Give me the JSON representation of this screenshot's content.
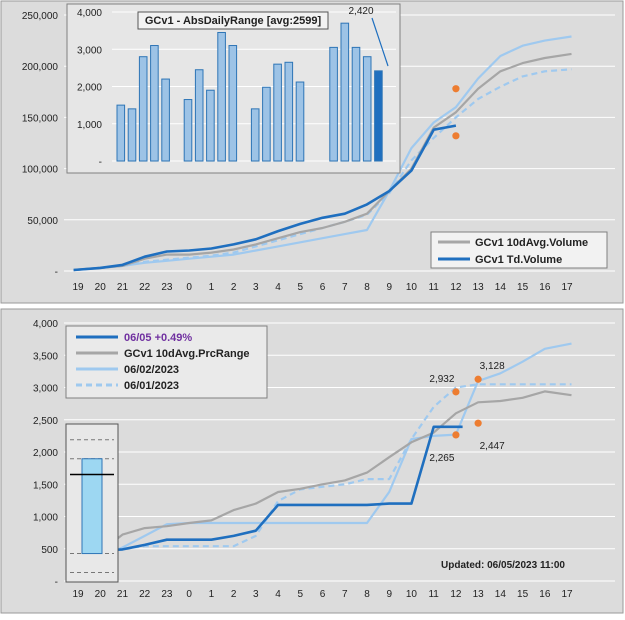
{
  "colors": {
    "panel_bg": "#dcdcdc",
    "inset_bg": "#e6e6e6",
    "dark_blue": "#1f6fbf",
    "light_blue": "#9dc3e6",
    "light_blue_line": "#9fc9ef",
    "gray_line": "#a6a6a6",
    "orange": "#ed7d31",
    "purple": "#7030a0",
    "bar_fill": "#9dc3e6",
    "bar_stroke": "#2e75b6"
  },
  "chart_data": [
    {
      "type": "line",
      "x_ticks": [
        "19",
        "20",
        "21",
        "22",
        "23",
        "0",
        "1",
        "2",
        "3",
        "4",
        "5",
        "6",
        "7",
        "8",
        "9",
        "10",
        "11",
        "12",
        "13",
        "14",
        "15",
        "16",
        "17"
      ],
      "y_ticks": [
        "-",
        "50,000",
        "100,000",
        "150,000",
        "200,000",
        "250,000"
      ],
      "ylim": [
        0,
        250000
      ],
      "grid": true,
      "legend_position": "bottom-right",
      "series": [
        {
          "name": "GCv1 10dAvg.Volume",
          "color": "#a6a6a6",
          "style": "solid",
          "x": [
            18.8,
            20,
            21,
            22,
            23,
            24,
            25,
            26,
            27,
            28,
            29,
            30,
            31,
            32,
            33,
            34,
            35,
            36,
            37,
            38,
            39,
            40,
            41.2
          ],
          "y": [
            1000,
            3000,
            5000,
            12000,
            16000,
            16000,
            18000,
            21000,
            26000,
            32000,
            38000,
            42000,
            48000,
            56000,
            78000,
            100000,
            140000,
            155000,
            178000,
            195000,
            203000,
            208000,
            212000
          ]
        },
        {
          "name": "GCv1 Td.Volume",
          "color": "#1f6fbf",
          "style": "solid",
          "x": [
            18.8,
            20,
            21,
            22,
            23,
            24,
            25,
            26,
            27,
            28,
            29,
            30,
            31,
            32,
            33,
            34,
            35,
            36
          ],
          "y": [
            1000,
            3000,
            6000,
            14000,
            19000,
            20000,
            22000,
            26000,
            31000,
            39000,
            46000,
            52000,
            56000,
            65000,
            78000,
            98000,
            138000,
            142000
          ]
        },
        {
          "name": "",
          "color": "#9fc9ef",
          "style": "solid",
          "x": [
            18.8,
            20,
            21,
            22,
            23,
            24,
            25,
            26,
            27,
            28,
            29,
            30,
            31,
            32,
            33,
            34,
            35,
            36,
            37,
            38,
            39,
            40,
            41.2
          ],
          "y": [
            1000,
            3000,
            5000,
            8000,
            10000,
            12000,
            14000,
            16000,
            20000,
            24000,
            28000,
            32000,
            36000,
            40000,
            78000,
            120000,
            145000,
            160000,
            188000,
            210000,
            220000,
            225000,
            229000
          ]
        },
        {
          "name": "",
          "color": "#9fc9ef",
          "style": "dashed",
          "x": [
            18.8,
            20,
            21,
            22,
            23,
            24,
            25,
            26,
            27,
            28,
            29,
            30,
            31,
            32,
            33,
            34,
            35,
            36,
            37,
            38,
            39,
            40,
            41.2
          ],
          "y": [
            1000,
            3000,
            5000,
            9000,
            11000,
            13000,
            15000,
            18000,
            24000,
            30000,
            36000,
            42000,
            48000,
            55000,
            76000,
            108000,
            130000,
            150000,
            168000,
            180000,
            190000,
            195000,
            197000
          ]
        }
      ],
      "markers": [
        {
          "x": 36,
          "y": 178000,
          "color": "#ed7d31"
        },
        {
          "x": 36,
          "y": 132000,
          "color": "#ed7d31"
        }
      ]
    },
    {
      "type": "bar",
      "title": "GCv1 - AbsDailyRange [avg:2599]",
      "y_ticks": [
        "-",
        "1,000",
        "2,000",
        "3,000",
        "4,000"
      ],
      "ylim": [
        0,
        4000
      ],
      "values": [
        1500,
        1400,
        2800,
        3100,
        2200,
        null,
        1650,
        2450,
        1900,
        3450,
        3100,
        null,
        1400,
        1980,
        2600,
        2650,
        2120,
        null,
        null,
        3050,
        3700,
        3050,
        2800,
        2420
      ],
      "highlight_last": true,
      "annotation": "2,420"
    },
    {
      "type": "line",
      "x_ticks": [
        "19",
        "20",
        "21",
        "22",
        "23",
        "0",
        "1",
        "2",
        "3",
        "4",
        "5",
        "6",
        "7",
        "8",
        "9",
        "10",
        "11",
        "12",
        "13",
        "14",
        "15",
        "16",
        "17"
      ],
      "y_ticks": [
        "-",
        "500",
        "1,000",
        "1,500",
        "2,000",
        "2,500",
        "3,000",
        "3,500",
        "4,000"
      ],
      "ylim": [
        0,
        4000
      ],
      "grid": true,
      "legend_position": "top-left",
      "series": [
        {
          "name": "06/05 +0.49%",
          "color": "#1f6fbf",
          "style": "solid",
          "x": [
            18.8,
            20,
            21,
            22,
            23,
            24,
            25,
            26,
            27,
            28,
            29,
            30,
            31,
            32,
            33,
            34,
            35,
            35.5,
            36,
            36.3
          ],
          "y": [
            420,
            470,
            490,
            560,
            640,
            640,
            640,
            700,
            780,
            1180,
            1180,
            1180,
            1180,
            1180,
            1200,
            1200,
            2390,
            2390,
            2390,
            2390
          ]
        },
        {
          "name": "GCv1 10dAvg.PrcRange",
          "color": "#a6a6a6",
          "style": "solid",
          "x": [
            18.8,
            20,
            21,
            22,
            23,
            24,
            25,
            26,
            27,
            28,
            29,
            30,
            31,
            32,
            33,
            34,
            35,
            36,
            37,
            38,
            39,
            40,
            41.2
          ],
          "y": [
            400,
            450,
            720,
            820,
            850,
            900,
            940,
            1100,
            1200,
            1380,
            1430,
            1500,
            1560,
            1680,
            1920,
            2150,
            2300,
            2600,
            2770,
            2790,
            2840,
            2940,
            2880
          ]
        },
        {
          "name": "06/02/2023",
          "color": "#9fc9ef",
          "style": "solid",
          "x": [
            18.8,
            20,
            21,
            22,
            23,
            24,
            25,
            26,
            27,
            28,
            29,
            30,
            31,
            32,
            33,
            34,
            35,
            36,
            37,
            38,
            39,
            40,
            41.2
          ],
          "y": [
            200,
            380,
            520,
            700,
            880,
            900,
            900,
            900,
            900,
            900,
            900,
            900,
            900,
            900,
            1380,
            2200,
            2250,
            2270,
            3100,
            3220,
            3400,
            3600,
            3680
          ]
        },
        {
          "name": "06/01/2023",
          "color": "#9fc9ef",
          "style": "dashed",
          "x": [
            18.8,
            20,
            21,
            22,
            23,
            24,
            25,
            26,
            27,
            28,
            29,
            30,
            31,
            32,
            33,
            34,
            35,
            36,
            37,
            38,
            39,
            40,
            41.2
          ],
          "y": [
            380,
            430,
            500,
            540,
            540,
            540,
            540,
            540,
            700,
            1240,
            1420,
            1460,
            1500,
            1580,
            1580,
            2200,
            2700,
            3000,
            3050,
            3050,
            3050,
            3050,
            3050
          ]
        }
      ],
      "markers": [
        {
          "x": 36,
          "y": 2932,
          "label": "2,932",
          "color": "#ed7d31"
        },
        {
          "x": 37,
          "y": 3128,
          "label": "3,128",
          "color": "#ed7d31"
        },
        {
          "x": 36,
          "y": 2265,
          "label": "2,265",
          "color": "#ed7d31"
        },
        {
          "x": 37,
          "y": 2447,
          "label": "2,447",
          "color": "#ed7d31"
        }
      ],
      "range_box": {
        "low": 450,
        "high": 1950,
        "current": 1700,
        "dashed_levels": [
          150,
          450,
          1950,
          2250
        ]
      },
      "annotation": "Updated: 06/05/2023 11:00"
    }
  ]
}
